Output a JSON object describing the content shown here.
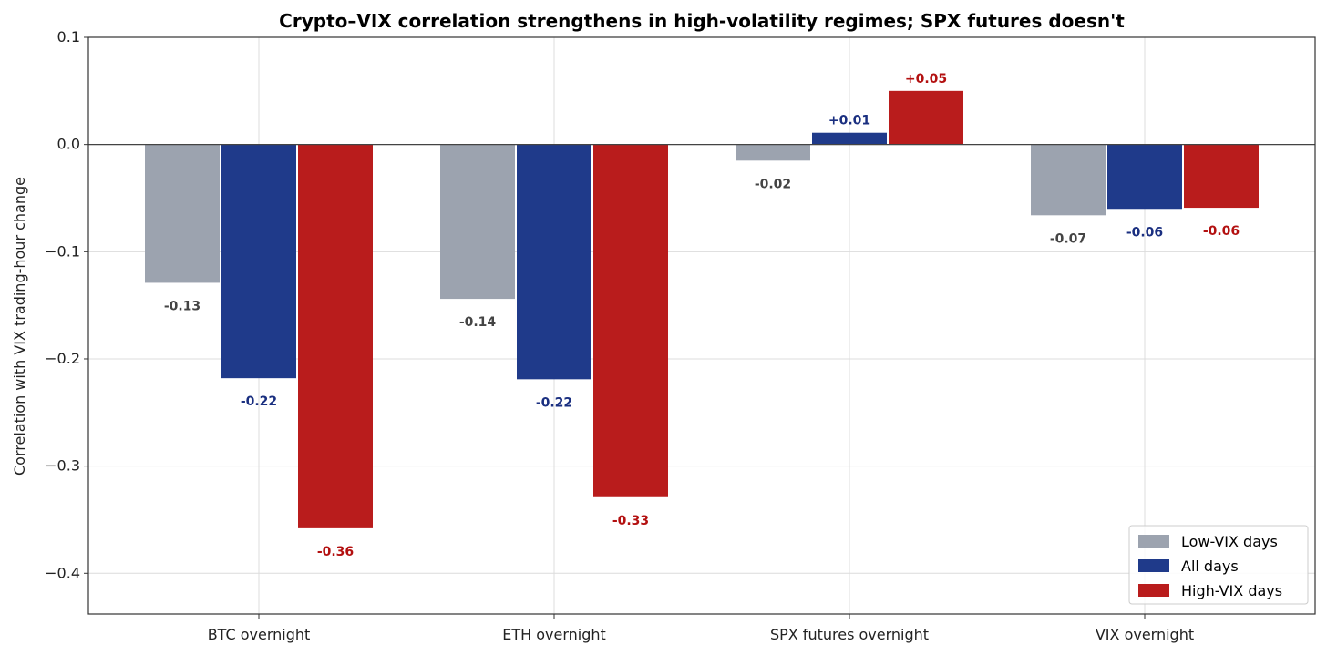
{
  "chart_data": {
    "type": "bar",
    "title": "Crypto–VIX correlation strengthens in high-volatility regimes; SPX futures doesn't",
    "xlabel": "",
    "ylabel": "Correlation with VIX trading-hour change",
    "categories": [
      "BTC overnight",
      "ETH overnight",
      "SPX futures overnight",
      "VIX overnight"
    ],
    "ylim": [
      -0.438,
      0.1
    ],
    "yticks": [
      0.1,
      0.0,
      -0.1,
      -0.2,
      -0.3,
      -0.4
    ],
    "ytick_labels": [
      "0.1",
      "0.0",
      "−0.1",
      "−0.2",
      "−0.3",
      "−0.4"
    ],
    "grid": true,
    "legend_position": "bottom-right",
    "series": [
      {
        "name": "Low-VIX days",
        "color": "#9ca3af",
        "label_color": "#444444",
        "values": [
          -0.129,
          -0.144,
          -0.015,
          -0.066
        ],
        "labels": [
          "-0.13",
          "-0.14",
          "-0.02",
          "-0.07"
        ]
      },
      {
        "name": "All days",
        "color": "#1f3a8a",
        "label_color": "#1a2f80",
        "values": [
          -0.218,
          -0.219,
          0.011,
          -0.06
        ],
        "labels": [
          "-0.22",
          "-0.22",
          "+0.01",
          "-0.06"
        ]
      },
      {
        "name": "High-VIX days",
        "color": "#b91c1c",
        "label_color": "#b31010",
        "values": [
          -0.358,
          -0.329,
          0.05,
          -0.059
        ],
        "labels": [
          "-0.36",
          "-0.33",
          "+0.05",
          "-0.06"
        ]
      }
    ]
  }
}
